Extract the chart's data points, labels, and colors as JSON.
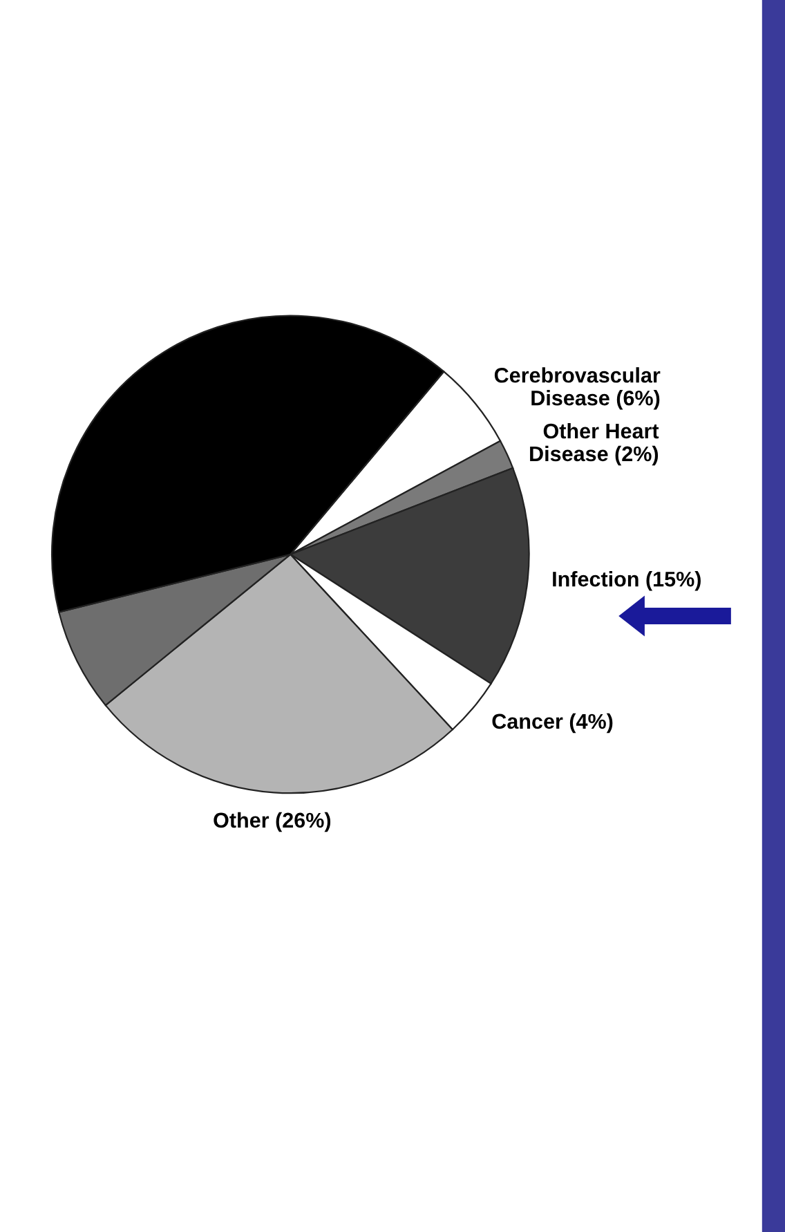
{
  "chart_data": {
    "type": "pie",
    "categories": [
      "Cerebrovascular\nDisease",
      "Other Heart\nDisease",
      "Infection",
      "Cancer",
      "Other",
      null,
      null
    ],
    "values": [
      6,
      2,
      15,
      4,
      26,
      7,
      40
    ],
    "value_labels": [
      "(6%)",
      "(2%)",
      "(15%)",
      "(4%)",
      "(26%)",
      null,
      null
    ],
    "colors": [
      "#ffffff",
      "#7a7a7a",
      "#3c3c3c",
      "#ffffff",
      "#b4b4b4",
      "#6e6e6e",
      "#000000"
    ],
    "legend": false
  }
}
